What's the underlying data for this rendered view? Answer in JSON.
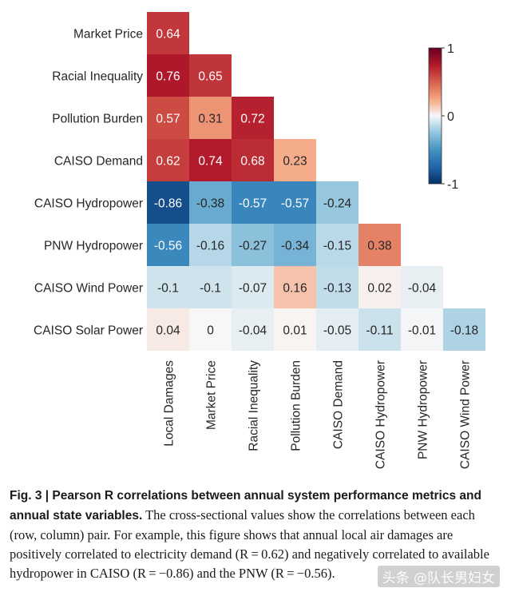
{
  "chart_data": {
    "type": "heatmap",
    "title": "",
    "rows": [
      "Market Price",
      "Racial Inequality",
      "Pollution Burden",
      "CAISO Demand",
      "CAISO Hydropower",
      "PNW Hydropower",
      "CAISO Wind Power",
      "CAISO Solar Power"
    ],
    "columns": [
      "Local Damages",
      "Market Price",
      "Racial Inequality",
      "Pollution Burden",
      "CAISO Demand",
      "CAISO Hydropower",
      "PNW Hydropower",
      "CAISO Wind Power"
    ],
    "values": [
      [
        0.64
      ],
      [
        0.76,
        0.65
      ],
      [
        0.57,
        0.31,
        0.72
      ],
      [
        0.62,
        0.74,
        0.68,
        0.23
      ],
      [
        -0.86,
        -0.38,
        -0.57,
        -0.57,
        -0.24
      ],
      [
        -0.56,
        -0.16,
        -0.27,
        -0.34,
        -0.15,
        0.38
      ],
      [
        -0.1,
        -0.1,
        -0.07,
        0.16,
        -0.13,
        0.02,
        -0.04
      ],
      [
        0.04,
        0,
        -0.04,
        0.01,
        -0.05,
        -0.11,
        -0.01,
        -0.18
      ]
    ],
    "value_range": [
      -1,
      1
    ],
    "colorbar": {
      "ticks": [
        1,
        0,
        -1
      ],
      "tick_labels": [
        "1",
        "0",
        "-1"
      ]
    },
    "colors": {
      "negative": "#053061",
      "mid": "#f7f7f7",
      "positive": "#67001f"
    }
  },
  "caption": {
    "bold": "Fig. 3 | Pearson R correlations between annual system performance metrics and annual state variables.",
    "text": " The cross-sectional values show the correlations between each (row, column) pair. For example, this figure shows that annual local air damages are positively correlated to electricity demand (R = 0.62) and negatively correlated to available hydropower in CAISO (R = −0.86) and the PNW (R = −0.56)."
  },
  "watermark": "头条 @队长男妇女"
}
